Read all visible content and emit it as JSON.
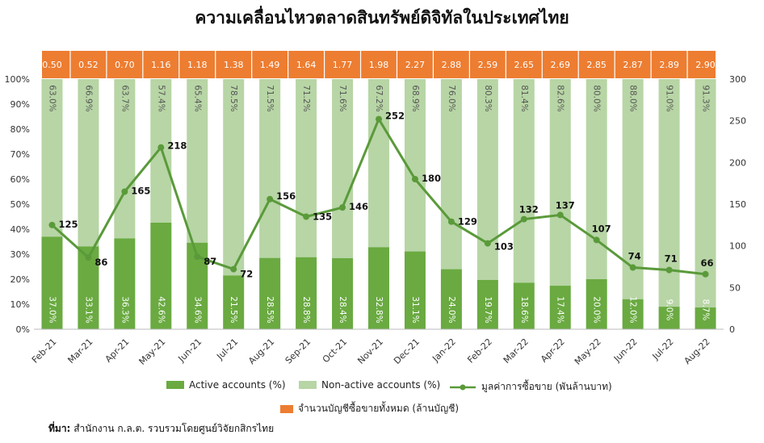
{
  "title": "ความเคลื่อนไหวตลาดสินทรัพย์ดิจิทัลในประเทศไทย",
  "colors": {
    "active": "#6aaa41",
    "non_active": "#b7d5a5",
    "line": "#5a9a3a",
    "band": "#ed7d31",
    "band_text": "#ffffff"
  },
  "legend": {
    "active": "Active accounts (%)",
    "non_active": "Non-active accounts (%)",
    "line": "มูลค่าการซื้อขาย (พันล้านบาท)",
    "band": "จำนวนบัญชีซื้อขายทั้งหมด (ล้านบัญชี)"
  },
  "source": {
    "label": "ที่มา:",
    "text": "สำนักงาน ก.ล.ต. รวบรวมโดยศูนย์วิจัยกสิกรไทย"
  },
  "chart_data": {
    "type": "bar",
    "categories": [
      "Feb-21",
      "Mar-21",
      "Apr-21",
      "May-21",
      "Jun-21",
      "Jul-21",
      "Aug-21",
      "Sep-21",
      "Oct-21",
      "Nov-21",
      "Dec-21",
      "Jan-22",
      "Feb-22",
      "Mar-22",
      "Apr-22",
      "May-22",
      "Jun-22",
      "Jul-22",
      "Aug-22"
    ],
    "series": [
      {
        "name": "Active accounts (%)",
        "kind": "stacked-bar",
        "values": [
          37.0,
          33.1,
          36.3,
          42.6,
          34.6,
          21.5,
          28.5,
          28.8,
          28.4,
          32.8,
          31.1,
          24.0,
          19.7,
          18.6,
          17.4,
          20.0,
          12.0,
          9.0,
          8.7
        ],
        "labels": [
          "37.0%",
          "33.1%",
          "36.3%",
          "42.6%",
          "34.6%",
          "21.5%",
          "28.5%",
          "28.8%",
          "28.4%",
          "32.8%",
          "31.1%",
          "24.0%",
          "19.7%",
          "18.6%",
          "17.4%",
          "20.0%",
          "12.0%",
          "9.0%",
          "8.7%"
        ]
      },
      {
        "name": "Non-active accounts (%)",
        "kind": "stacked-bar",
        "values": [
          63.0,
          66.9,
          63.7,
          57.4,
          65.4,
          78.5,
          71.5,
          71.2,
          71.6,
          67.2,
          68.9,
          76.0,
          80.3,
          81.4,
          82.6,
          80.0,
          88.0,
          91.0,
          91.3
        ],
        "labels": [
          "63.0%",
          "66.9%",
          "63.7%",
          "57.4%",
          "65.4%",
          "78.5%",
          "71.5%",
          "71.2%",
          "71.6%",
          "67.2%",
          "68.9%",
          "76.0%",
          "80.3%",
          "81.4%",
          "82.6%",
          "80.0%",
          "88.0%",
          "91.0%",
          "91.3%"
        ]
      },
      {
        "name": "มูลค่าการซื้อขาย (พันล้านบาท)",
        "kind": "line",
        "axis": "right",
        "values": [
          125,
          86,
          165,
          218,
          87,
          72,
          156,
          135,
          146,
          252,
          180,
          129,
          103,
          132,
          137,
          107,
          74,
          71,
          66
        ],
        "labels": [
          "125",
          "86",
          "165",
          "218",
          "87",
          "72",
          "156",
          "135",
          "146",
          "252",
          "180",
          "129",
          "103",
          "132",
          "137",
          "107",
          "74",
          "71",
          "66"
        ]
      },
      {
        "name": "จำนวนบัญชีซื้อขายทั้งหมด (ล้านบัญชี)",
        "kind": "band",
        "values": [
          0.5,
          0.52,
          0.7,
          1.16,
          1.18,
          1.38,
          1.49,
          1.64,
          1.77,
          1.98,
          2.27,
          2.88,
          2.59,
          2.65,
          2.69,
          2.85,
          2.87,
          2.89,
          2.9
        ],
        "labels": [
          "0.50",
          "0.52",
          "0.70",
          "1.16",
          "1.18",
          "1.38",
          "1.49",
          "1.64",
          "1.77",
          "1.98",
          "2.27",
          "2.88",
          "2.59",
          "2.65",
          "2.69",
          "2.85",
          "2.87",
          "2.89",
          "2.90"
        ]
      }
    ],
    "y_left": {
      "ylim": [
        0,
        100
      ],
      "ticks": [
        "0%",
        "10%",
        "20%",
        "30%",
        "40%",
        "50%",
        "60%",
        "70%",
        "80%",
        "90%",
        "100%"
      ]
    },
    "y_right": {
      "ylim": [
        0,
        300
      ],
      "ticks": [
        "0",
        "50",
        "100",
        "150",
        "200",
        "250",
        "300"
      ]
    },
    "grid": false
  }
}
